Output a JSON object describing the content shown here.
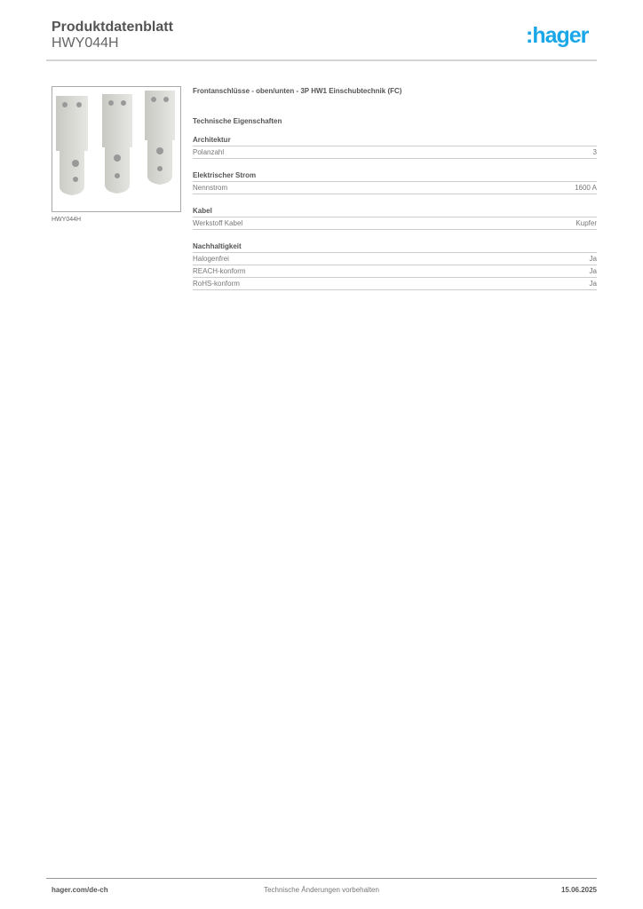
{
  "header": {
    "title": "Produktdatenblatt",
    "product_code": "HWY044H",
    "logo": ":hager",
    "logo_color": "#1aa7e8"
  },
  "image": {
    "caption": "HWY044H"
  },
  "product_title": "Frontanschlüsse - oben/unten - 3P HW1 Einschubtechnik (FC)",
  "section_title": "Technische Eigenschaften",
  "groups": [
    {
      "name": "Architektur",
      "rows": [
        {
          "label": "Polanzahl",
          "value": "3"
        }
      ]
    },
    {
      "name": "Elektrischer Strom",
      "rows": [
        {
          "label": "Nennstrom",
          "value": "1600 A"
        }
      ]
    },
    {
      "name": "Kabel",
      "rows": [
        {
          "label": "Werkstoff Kabel",
          "value": "Kupfer"
        }
      ]
    },
    {
      "name": "Nachhaltigkeit",
      "rows": [
        {
          "label": "Halogenfrei",
          "value": "Ja"
        },
        {
          "label": "REACH-konform",
          "value": "Ja"
        },
        {
          "label": "RoHS-konform",
          "value": "Ja"
        }
      ]
    }
  ],
  "footer": {
    "website": "hager.com/de-ch",
    "notice": "Technische Änderungen vorbehalten",
    "date": "15.06.2025"
  }
}
